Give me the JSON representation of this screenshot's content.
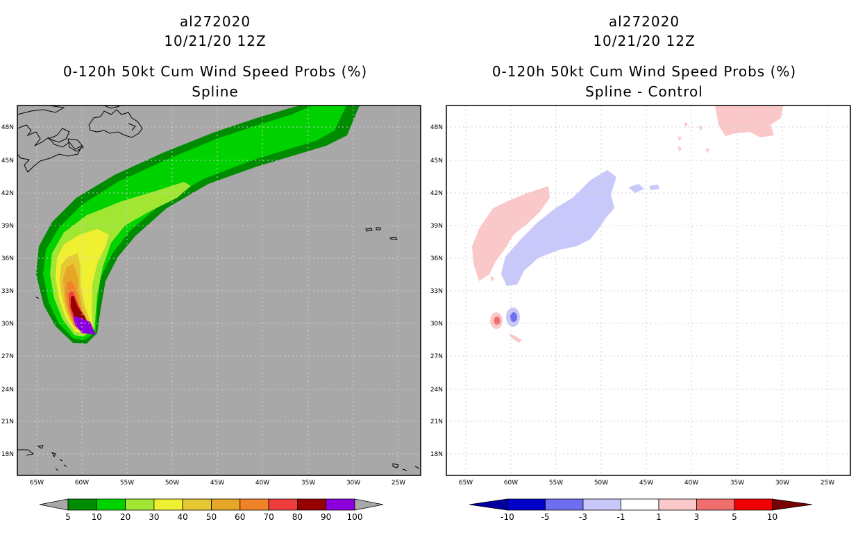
{
  "left_panel": {
    "storm_id": "al272020",
    "datetime": "10/21/20 12Z",
    "title": "0-120h 50kt Cum Wind Speed Probs (%)",
    "subtitle": "Spline",
    "background_color": "#a8a8a8",
    "colorbar": {
      "labels": [
        "5",
        "10",
        "20",
        "30",
        "40",
        "50",
        "60",
        "70",
        "80",
        "90",
        "100"
      ],
      "colors": [
        "#008c00",
        "#00d200",
        "#a0e632",
        "#f0f032",
        "#e6c832",
        "#e6a628",
        "#f08228",
        "#f03c3c",
        "#960000",
        "#8c00dc"
      ],
      "arrow_color": "#a8a8a8"
    }
  },
  "right_panel": {
    "storm_id": "al272020",
    "datetime": "10/21/20 12Z",
    "title": "0-120h 50kt Cum Wind Speed Probs (%)",
    "subtitle": "Spline - Control",
    "background_color": "#ffffff",
    "colorbar": {
      "labels": [
        "-10",
        "-5",
        "-3",
        "-1",
        "1",
        "3",
        "5",
        "10"
      ],
      "colors": [
        "#0000c8",
        "#6e6ef0",
        "#c8c8fa",
        "#ffffff",
        "#fac8c8",
        "#f06e6e",
        "#f00000"
      ],
      "arrow_low": "#0000a0",
      "arrow_high": "#780000"
    }
  },
  "axes": {
    "lat_labels": [
      "48N",
      "45N",
      "42N",
      "39N",
      "36N",
      "33N",
      "30N",
      "27N",
      "24N",
      "21N",
      "18N"
    ],
    "lon_labels": [
      "65W",
      "60W",
      "55W",
      "50W",
      "45W",
      "40W",
      "35W",
      "30W",
      "25W"
    ]
  }
}
